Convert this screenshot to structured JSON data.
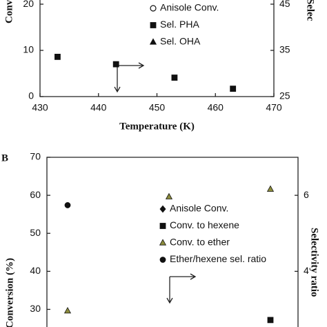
{
  "chart_data": [
    {
      "type": "scatter",
      "x_label": "Temperature (K)",
      "y_label": "Conve",
      "y2_label": "Selec",
      "x": [
        433,
        443,
        453,
        463
      ],
      "xlim": [
        430,
        470
      ],
      "xticks": [
        430,
        440,
        450,
        460,
        470
      ],
      "ylim": [
        0,
        21.2
      ],
      "yticks": [
        0,
        10,
        20
      ],
      "y2lim": [
        25,
        46.2
      ],
      "y2ticks": [
        25,
        35,
        45
      ],
      "series": [
        {
          "name": "Anisole Conv.",
          "marker": "circle-open",
          "color": "#111111",
          "values": [
            null,
            null,
            null,
            null
          ]
        },
        {
          "name": "Sel. PHA",
          "marker": "square",
          "color": "#111111",
          "axis": "y2",
          "values": [
            33.6,
            32.0,
            29.1,
            26.7
          ]
        },
        {
          "name": "Sel. OHA",
          "marker": "triangle",
          "color": "#111111",
          "axis": "y2",
          "values": [
            null,
            null,
            null,
            null
          ]
        }
      ]
    },
    {
      "type": "scatter",
      "label": "B",
      "y_label": "Conversion (%)",
      "y2_label": "Selectivity ratio",
      "categories": [
        null,
        null,
        null
      ],
      "ylim": [
        25,
        70
      ],
      "yticks": [
        30,
        40,
        50,
        60,
        70
      ],
      "y2lim": [
        2.5,
        7.0
      ],
      "y2ticks": [
        4,
        6
      ],
      "series": [
        {
          "name": "Anisole Conv.",
          "marker": "diamond",
          "color": "#111111",
          "values": [
            null,
            null,
            null
          ]
        },
        {
          "name": "Conv. to  hexene",
          "marker": "square",
          "color": "#111111",
          "values": [
            null,
            null,
            27.2
          ]
        },
        {
          "name": "Conv. to  ether",
          "marker": "triangle",
          "color": "#8c8c3c",
          "values": [
            29.6,
            59.6,
            61.6
          ]
        },
        {
          "name": "Ether/hexene sel. ratio",
          "marker": "circle",
          "color": "#111111",
          "axis": "y2",
          "values": [
            5.74,
            null,
            null
          ]
        }
      ]
    }
  ]
}
